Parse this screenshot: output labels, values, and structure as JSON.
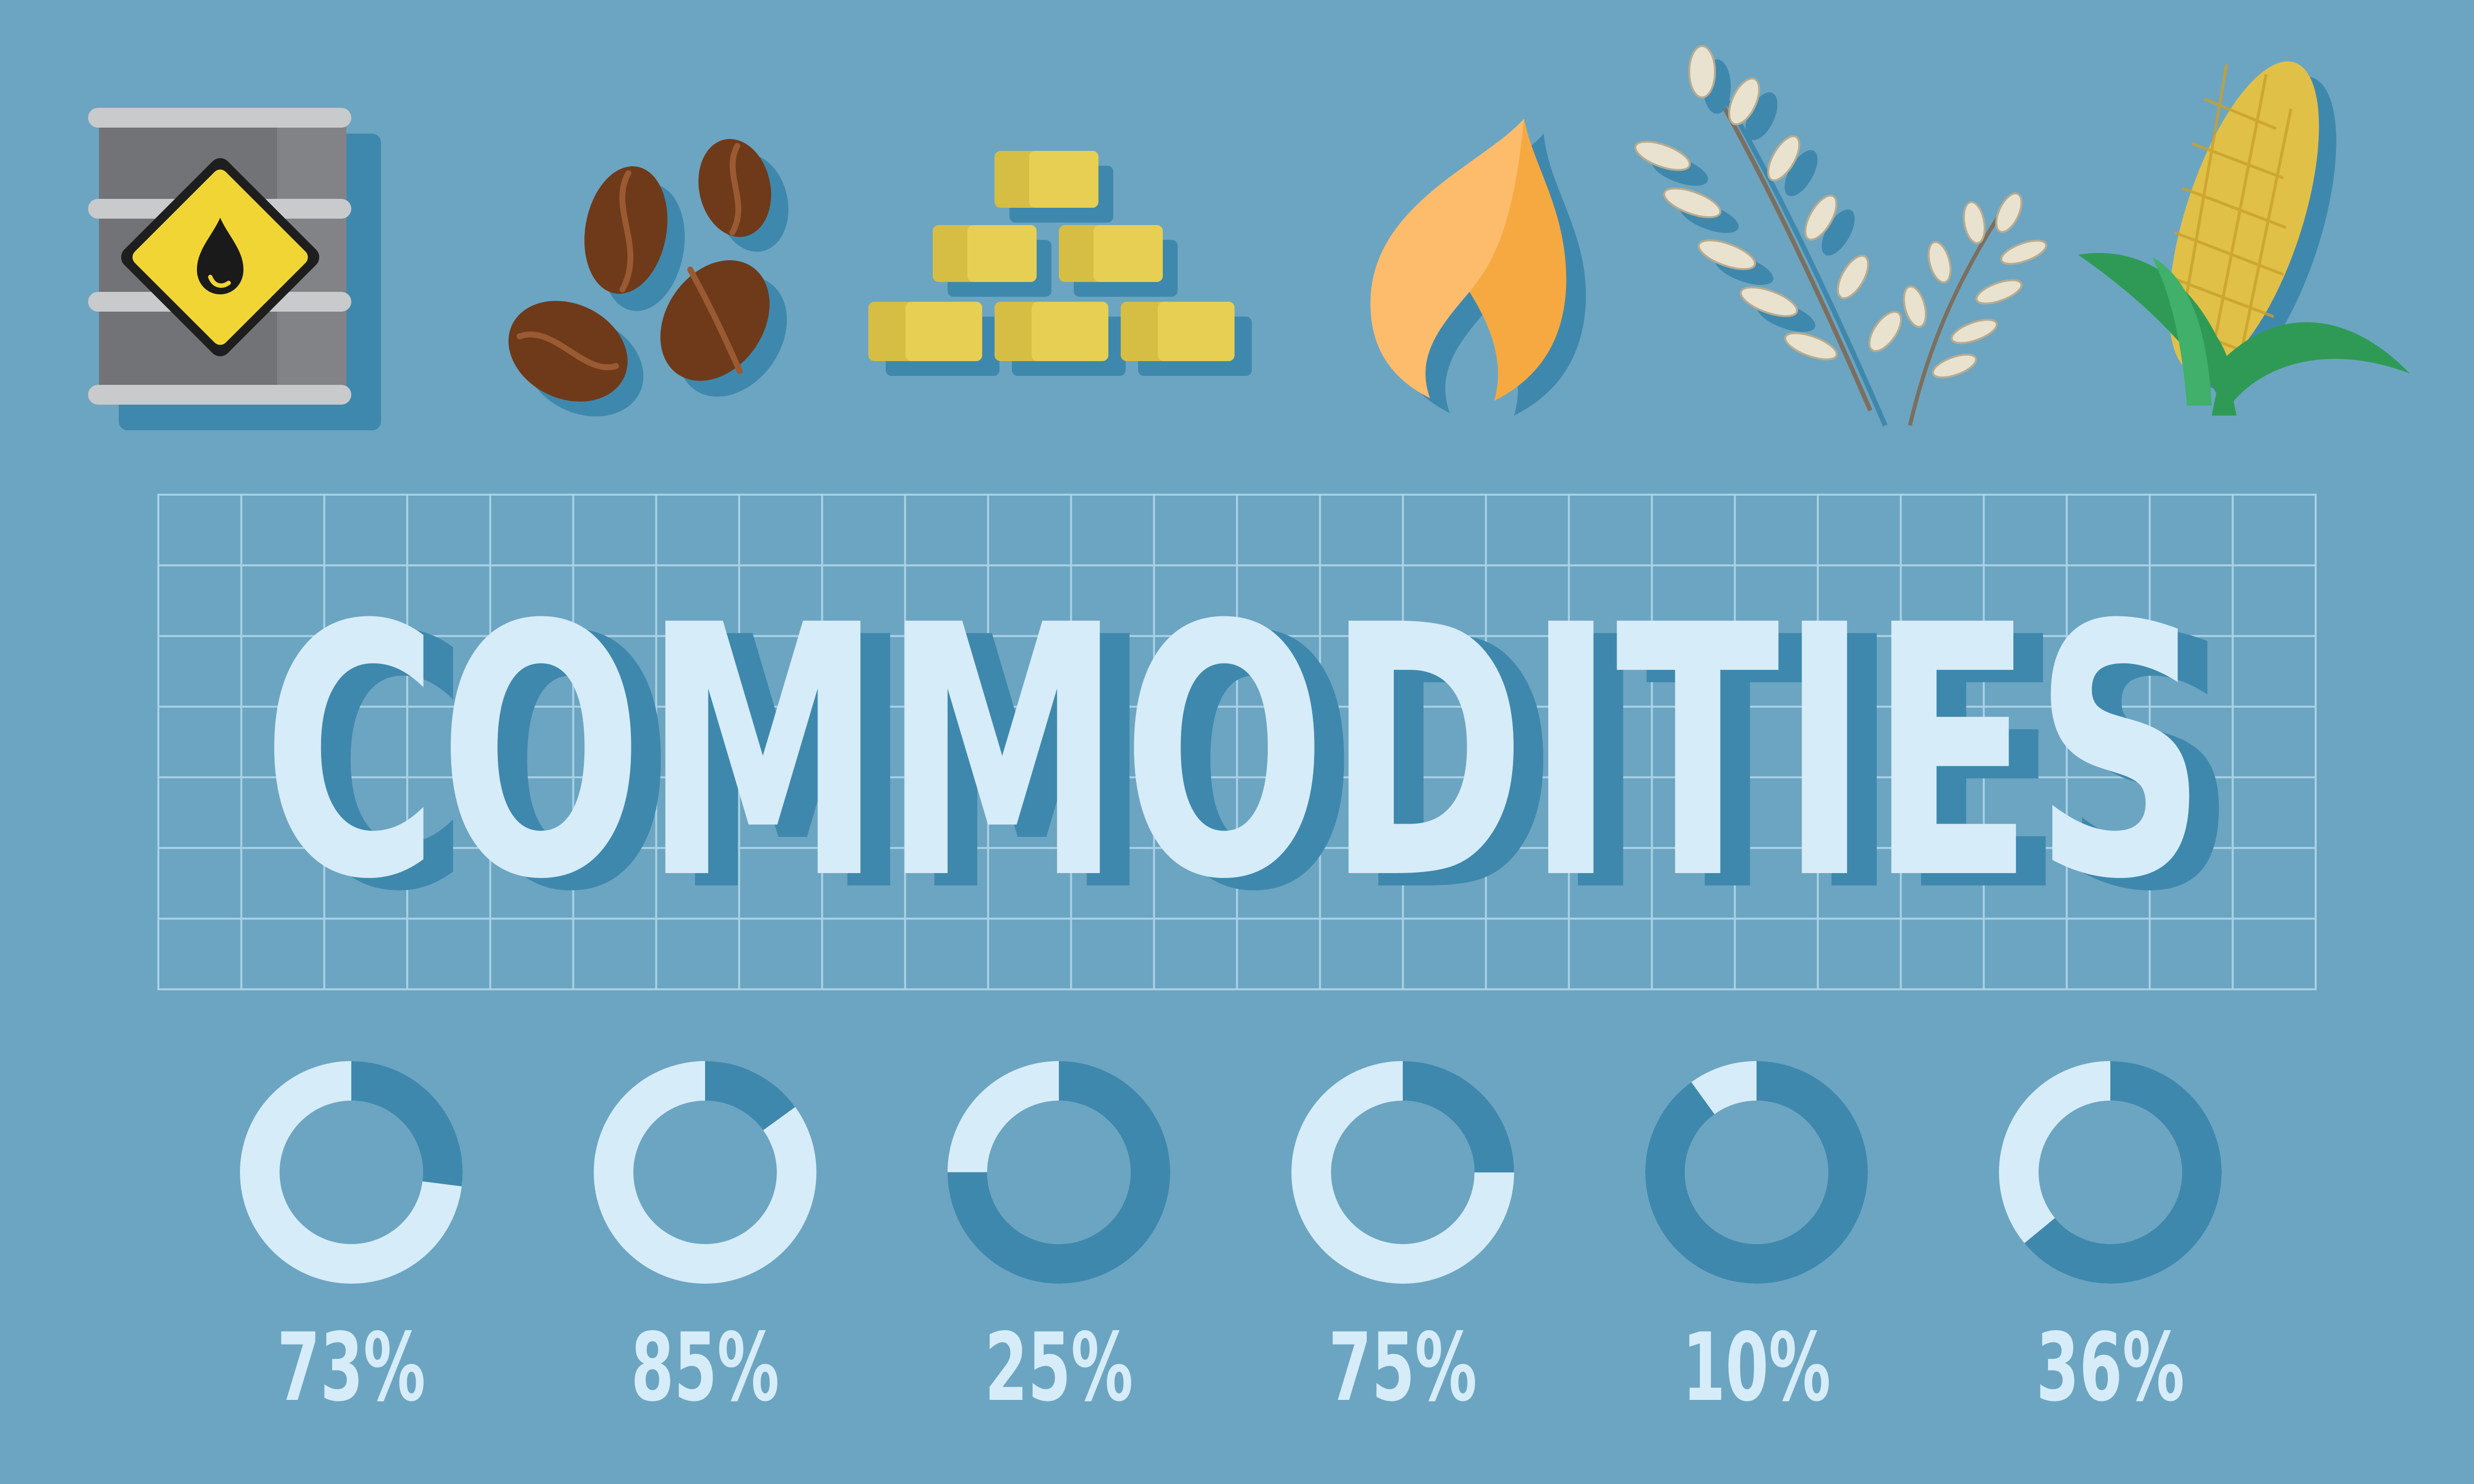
{
  "title": "COMMODITIES",
  "colors": {
    "background": "#6ca5c1",
    "shadow": "#3f88ad",
    "light": "#d6ecf8",
    "dark": "#3f88ad"
  },
  "icons": [
    {
      "name": "oil-barrel-icon"
    },
    {
      "name": "coffee-beans-icon"
    },
    {
      "name": "gold-bars-icon"
    },
    {
      "name": "gas-flame-icon"
    },
    {
      "name": "wheat-icon"
    },
    {
      "name": "corn-icon"
    }
  ],
  "donuts": [
    {
      "percent": 73,
      "label": "73%"
    },
    {
      "percent": 85,
      "label": "85%"
    },
    {
      "percent": 25,
      "label": "25%"
    },
    {
      "percent": 75,
      "label": "75%"
    },
    {
      "percent": 10,
      "label": "10%"
    },
    {
      "percent": 36,
      "label": "36%"
    }
  ]
}
